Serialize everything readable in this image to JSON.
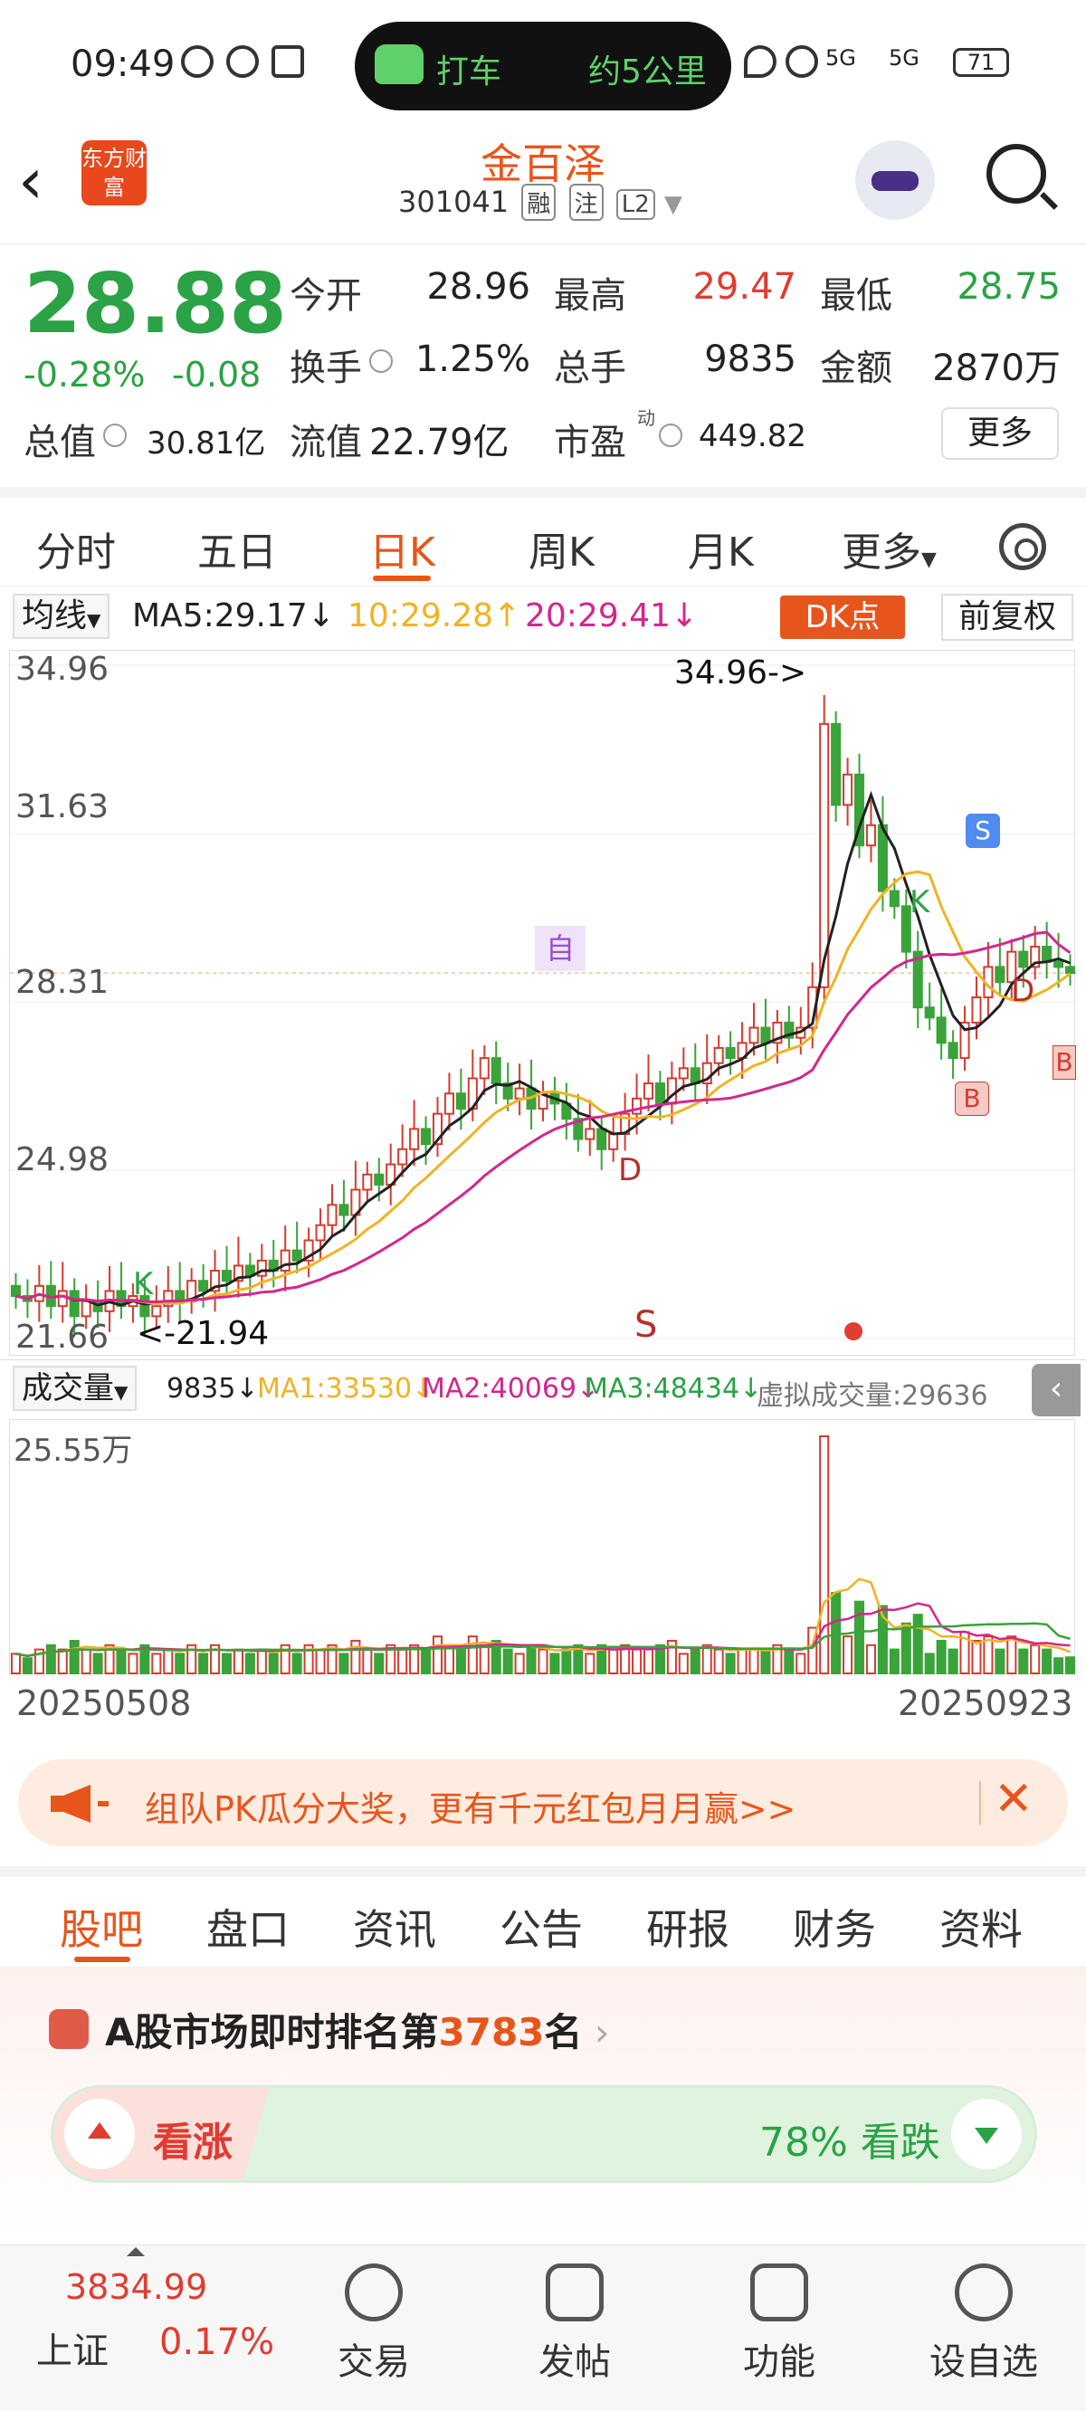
{
  "status_bar": {
    "time": "09:49",
    "ride_label": "打车",
    "ride_distance": "约5公里",
    "network": "5G",
    "battery": "71"
  },
  "header": {
    "stock_name": "金百泽",
    "stock_code": "301041",
    "tags": [
      "融",
      "注",
      "L2"
    ],
    "logo_text": "东方财富"
  },
  "quote": {
    "price": "28.88",
    "change_pct": "-0.28%",
    "change": "-0.08",
    "open_label": "今开",
    "open": "28.96",
    "high_label": "最高",
    "high": "29.47",
    "low_label": "最低",
    "low": "28.75",
    "turnover_label": "换手",
    "turnover": "1.25%",
    "volume_label": "总手",
    "volume": "9835",
    "amount_label": "金额",
    "amount": "2870万",
    "mktcap_label": "总值",
    "mktcap": "30.81亿",
    "float_label": "流值",
    "float_cap": "22.79亿",
    "pe_label": "市盈",
    "pe_sup": "动",
    "pe": "449.82",
    "more": "更多"
  },
  "tabs": [
    "分时",
    "五日",
    "日K",
    "周K",
    "月K",
    "更多"
  ],
  "active_tab": "日K",
  "ma_row": {
    "selector": "均线",
    "ma5": "MA5:29.17",
    "ma10": "10:29.28",
    "ma20": "20:29.41",
    "dk": "DK点",
    "adjust": "前复权"
  },
  "chart_data": {
    "type": "candlestick",
    "y_ticks": [
      "34.96",
      "31.63",
      "28.31",
      "24.98",
      "21.66"
    ],
    "ylim": [
      21.66,
      34.96
    ],
    "max_annotation": "34.96->",
    "min_annotation": "<-21.94",
    "markers": [
      "自",
      "S",
      "B",
      "D",
      "K"
    ],
    "x_start": "20250508",
    "x_end": "20250923",
    "colors": {
      "up": "#d63a2f",
      "down": "#3aa33a",
      "ma5": "#222222",
      "ma10": "#f0b323",
      "ma20": "#d4268e"
    },
    "close": [
      22.5,
      22.4,
      22.7,
      22.3,
      22.6,
      22.1,
      22.4,
      22.2,
      22.6,
      22.3,
      22.5,
      22.1,
      22.3,
      22.6,
      22.4,
      22.8,
      22.6,
      23.0,
      22.8,
      23.1,
      22.9,
      23.2,
      23.0,
      23.4,
      23.2,
      23.6,
      23.9,
      24.3,
      24.1,
      24.6,
      24.9,
      24.7,
      25.1,
      25.4,
      25.8,
      25.5,
      26.1,
      26.5,
      26.2,
      26.8,
      27.2,
      26.7,
      26.4,
      26.6,
      26.2,
      26.5,
      26.3,
      26.0,
      25.6,
      25.8,
      25.4,
      25.7,
      26.1,
      26.4,
      26.7,
      26.3,
      26.8,
      27.0,
      26.7,
      27.1,
      27.4,
      27.2,
      27.5,
      27.8,
      27.5,
      27.9,
      27.6,
      27.8,
      28.6,
      33.8,
      32.2,
      32.8,
      31.4,
      31.8,
      30.5,
      30.2,
      29.3,
      28.2,
      28.0,
      27.5,
      27.2,
      27.9,
      28.4,
      29.0,
      28.7,
      29.3,
      29.0,
      29.4,
      29.1,
      29.0,
      28.88
    ],
    "volume_max": "25.55万",
    "volume_row": {
      "selector": "成交量",
      "vol": "9835",
      "ma1": "MA1:33530",
      "ma2": "MA2:40069",
      "ma3": "MA3:48434",
      "virtual": "虚拟成交量:29636"
    }
  },
  "banner": {
    "text": "组队PK瓜分大奖，更有千元红包月月赢>>"
  },
  "sub_tabs": [
    "股吧",
    "盘口",
    "资讯",
    "公告",
    "研报",
    "财务",
    "资料"
  ],
  "rank": {
    "prefix": "A股市场即时排名第",
    "number": "3783",
    "suffix": "名"
  },
  "vote": {
    "up_label": "看涨",
    "down_label": "78% 看跌",
    "down_pct": 0.78
  },
  "bottom": {
    "index_value": "3834.99",
    "index_name": "上证",
    "index_pct": "0.17%",
    "nav": [
      "交易",
      "发帖",
      "功能",
      "设自选"
    ]
  }
}
